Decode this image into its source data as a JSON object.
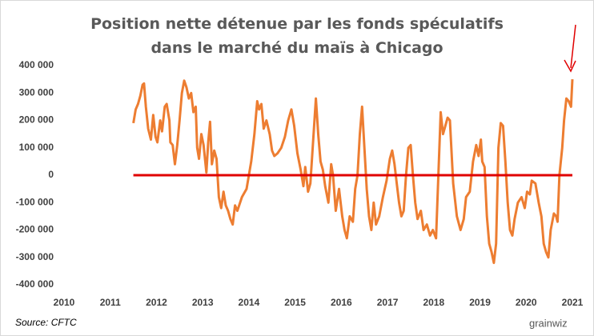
{
  "chart_data": {
    "type": "line",
    "title": "Position nette détenue par les fonds spéculatifs dans le marché du maïs à Chicago",
    "source": "Source: CFTC",
    "logo": "grainwiz",
    "xlim": [
      2010,
      2021
    ],
    "xticks": [
      2010,
      2011,
      2012,
      2013,
      2014,
      2015,
      2016,
      2017,
      2018,
      2019,
      2020,
      2021
    ],
    "ylim": [
      -400000,
      400000
    ],
    "yticks": [
      {
        "value": -400000,
        "label": "-400 000"
      },
      {
        "value": -300000,
        "label": "-300 000"
      },
      {
        "value": -200000,
        "label": "-200 000"
      },
      {
        "value": -100000,
        "label": "-100 000"
      },
      0,
      {
        "value": 100000,
        "label": "100 000"
      },
      {
        "value": 200000,
        "label": "200 000"
      },
      {
        "value": 300000,
        "label": "300 000"
      },
      {
        "value": 400000,
        "label": "400 000"
      }
    ],
    "grid": false,
    "reference_line": {
      "value": 0,
      "x": [
        2011.5,
        2021
      ],
      "color": "#e00000"
    },
    "series": [
      {
        "color": "#ed7d31",
        "x": [
          2011.5,
          2011.55,
          2011.6,
          2011.65,
          2011.7,
          2011.73,
          2011.77,
          2011.82,
          2011.88,
          2011.93,
          2011.98,
          2012.02,
          2012.08,
          2012.12,
          2012.18,
          2012.22,
          2012.28,
          2012.3,
          2012.35,
          2012.4,
          2012.45,
          2012.5,
          2012.55,
          2012.6,
          2012.65,
          2012.7,
          2012.75,
          2012.8,
          2012.85,
          2012.88,
          2012.92,
          2012.97,
          2013.02,
          2013.08,
          2013.12,
          2013.16,
          2013.2,
          2013.25,
          2013.3,
          2013.35,
          2013.4,
          2013.45,
          2013.5,
          2013.55,
          2013.6,
          2013.65,
          2013.7,
          2013.75,
          2013.85,
          2013.95,
          2014.05,
          2014.12,
          2014.18,
          2014.22,
          2014.27,
          2014.32,
          2014.38,
          2014.45,
          2014.5,
          2014.55,
          2014.62,
          2014.7,
          2014.78,
          2014.85,
          2014.92,
          2014.98,
          2015.05,
          2015.12,
          2015.18,
          2015.22,
          2015.28,
          2015.33,
          2015.38,
          2015.45,
          2015.5,
          2015.55,
          2015.6,
          2015.65,
          2015.72,
          2015.78,
          2015.82,
          2015.88,
          2015.95,
          2016.02,
          2016.07,
          2016.12,
          2016.18,
          2016.25,
          2016.3,
          2016.35,
          2016.4,
          2016.45,
          2016.5,
          2016.55,
          2016.6,
          2016.65,
          2016.7,
          2016.75,
          2016.82,
          2016.9,
          2016.98,
          2017.05,
          2017.1,
          2017.15,
          2017.2,
          2017.25,
          2017.3,
          2017.35,
          2017.4,
          2017.45,
          2017.5,
          2017.55,
          2017.6,
          2017.65,
          2017.72,
          2017.78,
          2017.85,
          2017.92,
          2017.98,
          2018.05,
          2018.1,
          2018.15,
          2018.2,
          2018.25,
          2018.3,
          2018.35,
          2018.42,
          2018.5,
          2018.58,
          2018.65,
          2018.7,
          2018.78,
          2018.85,
          2018.92,
          2018.97,
          2019.02,
          2019.05,
          2019.1,
          2019.15,
          2019.2,
          2019.25,
          2019.3,
          2019.35,
          2019.4,
          2019.45,
          2019.5,
          2019.55,
          2019.6,
          2019.65,
          2019.7,
          2019.75,
          2019.82,
          2019.9,
          2019.97,
          2020.02,
          2020.08,
          2020.12,
          2020.2,
          2020.27,
          2020.33,
          2020.38,
          2020.43,
          2020.48,
          2020.53,
          2020.6,
          2020.65,
          2020.68,
          2020.72,
          2020.78,
          2020.82,
          2020.87,
          2020.92,
          2020.97,
          2021.0
        ],
        "values": [
          190000,
          240000,
          260000,
          290000,
          330000,
          335000,
          250000,
          170000,
          130000,
          220000,
          140000,
          120000,
          200000,
          160000,
          250000,
          260000,
          200000,
          120000,
          110000,
          40000,
          110000,
          200000,
          300000,
          345000,
          320000,
          280000,
          300000,
          230000,
          250000,
          100000,
          60000,
          150000,
          110000,
          10000,
          120000,
          195000,
          40000,
          90000,
          60000,
          -80000,
          -120000,
          -60000,
          -110000,
          -130000,
          -160000,
          -180000,
          -110000,
          -130000,
          -80000,
          -50000,
          50000,
          150000,
          270000,
          240000,
          260000,
          170000,
          200000,
          150000,
          90000,
          70000,
          80000,
          100000,
          140000,
          200000,
          240000,
          180000,
          80000,
          20000,
          -40000,
          30000,
          -60000,
          -30000,
          100000,
          280000,
          150000,
          50000,
          20000,
          -40000,
          -100000,
          40000,
          0,
          -130000,
          -50000,
          -150000,
          -200000,
          -230000,
          -150000,
          -170000,
          -50000,
          0,
          150000,
          250000,
          100000,
          -50000,
          -150000,
          -200000,
          -100000,
          -180000,
          -150000,
          -80000,
          -20000,
          60000,
          90000,
          40000,
          -30000,
          -100000,
          -150000,
          -130000,
          0,
          100000,
          110000,
          0,
          -100000,
          -160000,
          -130000,
          -200000,
          -180000,
          -220000,
          -200000,
          -230000,
          0,
          230000,
          150000,
          180000,
          210000,
          200000,
          -30000,
          -150000,
          -200000,
          -160000,
          -80000,
          -60000,
          50000,
          110000,
          70000,
          130000,
          50000,
          30000,
          -150000,
          -250000,
          -280000,
          -320000,
          -250000,
          100000,
          190000,
          180000,
          50000,
          -100000,
          -200000,
          -220000,
          -160000,
          -100000,
          -80000,
          -120000,
          -60000,
          -70000,
          -20000,
          -30000,
          -100000,
          -150000,
          -250000,
          -280000,
          -300000,
          -200000,
          -140000,
          -150000,
          -170000,
          0,
          100000,
          200000,
          280000,
          270000,
          250000,
          350000
        ]
      }
    ]
  }
}
